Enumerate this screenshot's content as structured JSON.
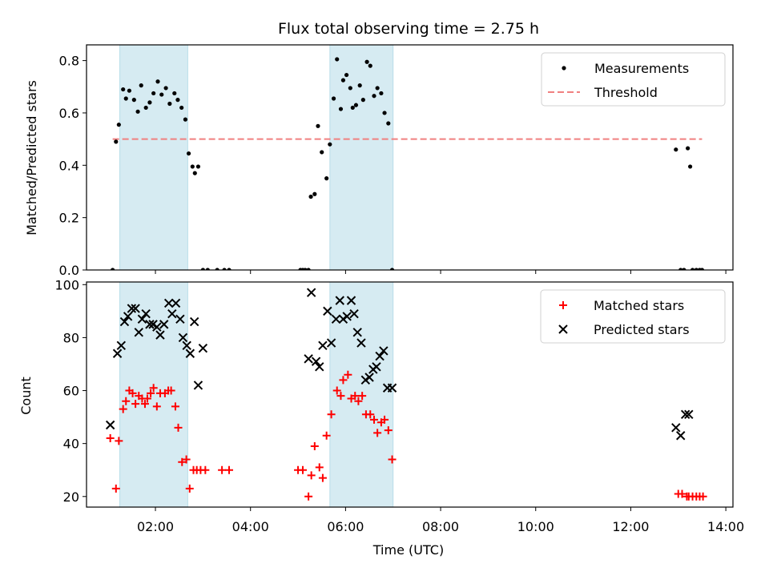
{
  "chart_data": [
    {
      "type": "scatter",
      "title": "Flux total observing time = 2.75 h",
      "xlabel": "",
      "ylabel": "Matched/Predicted stars",
      "xlim": [
        0.55,
        14.15
      ],
      "ylim": [
        0,
        0.86
      ],
      "yticks": [
        0.0,
        0.2,
        0.4,
        0.6,
        0.8
      ],
      "ytick_labels": [
        "0.0",
        "0.2",
        "0.4",
        "0.6",
        "0.8"
      ],
      "xticks": [
        2,
        4,
        6,
        8,
        10,
        12,
        14
      ],
      "shaded_intervals": [
        [
          1.25,
          2.68
        ],
        [
          5.67,
          7.0
        ]
      ],
      "legend": {
        "position": "top-right",
        "entries": [
          "Measurements",
          "Threshold"
        ]
      },
      "threshold": {
        "name": "Threshold",
        "y": 0.5,
        "x_range": [
          1.1,
          13.5
        ],
        "color": "#f08080"
      },
      "series": [
        {
          "name": "Measurements",
          "color": "#000000",
          "x": [
            1.1,
            1.17,
            1.23,
            1.32,
            1.38,
            1.45,
            1.55,
            1.63,
            1.7,
            1.8,
            1.88,
            1.96,
            2.05,
            2.13,
            2.22,
            2.3,
            2.4,
            2.47,
            2.55,
            2.63,
            2.7,
            2.78,
            2.83,
            2.9,
            3.0,
            3.1,
            3.3,
            3.45,
            3.55,
            5.05,
            5.1,
            5.15,
            5.22,
            5.27,
            5.35,
            5.42,
            5.5,
            5.6,
            5.67,
            5.75,
            5.82,
            5.9,
            5.95,
            6.02,
            6.1,
            6.15,
            6.22,
            6.3,
            6.37,
            6.45,
            6.52,
            6.6,
            6.67,
            6.75,
            6.82,
            6.9,
            6.98,
            12.95,
            13.05,
            13.12,
            13.2,
            13.25,
            13.3,
            13.38,
            13.45,
            13.5
          ],
          "y": [
            0.0,
            0.49,
            0.555,
            0.69,
            0.655,
            0.685,
            0.65,
            0.605,
            0.705,
            0.62,
            0.64,
            0.675,
            0.72,
            0.67,
            0.695,
            0.635,
            0.675,
            0.65,
            0.62,
            0.575,
            0.445,
            0.395,
            0.37,
            0.395,
            0.0,
            0.0,
            0.0,
            0.0,
            0.0,
            0.0,
            0.0,
            0.0,
            0.0,
            0.28,
            0.29,
            0.55,
            0.45,
            0.35,
            0.48,
            0.655,
            0.805,
            0.615,
            0.725,
            0.745,
            0.695,
            0.62,
            0.63,
            0.705,
            0.65,
            0.795,
            0.78,
            0.665,
            0.695,
            0.675,
            0.6,
            0.56,
            0.0,
            0.46,
            0.0,
            0.0,
            0.465,
            0.395,
            0.0,
            0.0,
            0.0,
            0.0
          ]
        }
      ]
    },
    {
      "type": "scatter",
      "title": "",
      "xlabel": "Time (UTC)",
      "ylabel": "Count",
      "xlim": [
        0.55,
        14.15
      ],
      "ylim": [
        16,
        101
      ],
      "yticks": [
        20,
        40,
        60,
        80,
        100
      ],
      "ytick_labels": [
        "20",
        "40",
        "60",
        "80",
        "100"
      ],
      "xticks": [
        2,
        4,
        6,
        8,
        10,
        12,
        14
      ],
      "xtick_labels": [
        "02:00",
        "04:00",
        "06:00",
        "08:00",
        "10:00",
        "12:00",
        "14:00"
      ],
      "shaded_intervals": [
        [
          1.25,
          2.68
        ],
        [
          5.67,
          7.0
        ]
      ],
      "legend": {
        "position": "top-right",
        "entries": [
          "Matched stars",
          "Predicted stars"
        ]
      },
      "series": [
        {
          "name": "Matched stars",
          "marker": "plus",
          "color": "#ff0000",
          "x": [
            1.05,
            1.17,
            1.23,
            1.32,
            1.38,
            1.45,
            1.52,
            1.58,
            1.65,
            1.72,
            1.78,
            1.83,
            1.9,
            1.96,
            2.03,
            2.1,
            2.2,
            2.27,
            2.33,
            2.42,
            2.48,
            2.56,
            2.65,
            2.72,
            2.8,
            2.87,
            2.95,
            3.05,
            3.4,
            3.55,
            5.0,
            5.1,
            5.22,
            5.28,
            5.35,
            5.45,
            5.52,
            5.6,
            5.7,
            5.82,
            5.9,
            5.95,
            6.05,
            6.12,
            6.2,
            6.27,
            6.35,
            6.43,
            6.52,
            6.6,
            6.67,
            6.75,
            6.82,
            6.9,
            6.98,
            13.0,
            13.08,
            13.18,
            13.22,
            13.3,
            13.38,
            13.45,
            13.52
          ],
          "y": [
            42,
            23,
            41,
            53,
            56,
            60,
            59,
            55,
            58,
            57,
            55,
            57,
            59,
            61,
            54,
            59,
            59,
            60,
            60,
            54,
            46,
            33,
            34,
            23,
            30,
            30,
            30,
            30,
            30,
            30,
            30,
            30,
            20,
            28,
            39,
            31,
            27,
            43,
            51,
            60,
            58,
            64,
            66,
            57,
            58,
            56,
            58,
            51,
            51,
            49,
            44,
            48,
            49,
            45,
            34,
            21,
            21,
            20,
            20,
            20,
            20,
            20,
            20
          ]
        },
        {
          "name": "Predicted stars",
          "marker": "x",
          "color": "#000000",
          "x": [
            1.05,
            1.2,
            1.28,
            1.35,
            1.42,
            1.5,
            1.58,
            1.65,
            1.72,
            1.8,
            1.88,
            1.95,
            2.03,
            2.1,
            2.18,
            2.28,
            2.35,
            2.43,
            2.52,
            2.58,
            2.66,
            2.73,
            2.82,
            2.9,
            3.0,
            5.22,
            5.28,
            5.38,
            5.45,
            5.52,
            5.62,
            5.7,
            5.8,
            5.88,
            5.95,
            6.03,
            6.12,
            6.18,
            6.25,
            6.33,
            6.42,
            6.5,
            6.58,
            6.65,
            6.72,
            6.8,
            6.88,
            6.98,
            12.95,
            13.05,
            13.15,
            13.22
          ],
          "y": [
            47,
            74,
            77,
            86,
            88,
            91,
            91,
            82,
            87,
            89,
            85,
            85,
            84,
            81,
            85,
            93,
            89,
            93,
            87,
            80,
            77,
            74,
            86,
            62,
            76,
            72,
            97,
            71,
            69,
            77,
            90,
            78,
            87,
            94,
            87,
            88,
            94,
            89,
            82,
            78,
            64,
            65,
            68,
            69,
            73,
            75,
            61,
            61,
            46,
            43,
            51,
            51
          ]
        }
      ]
    }
  ]
}
